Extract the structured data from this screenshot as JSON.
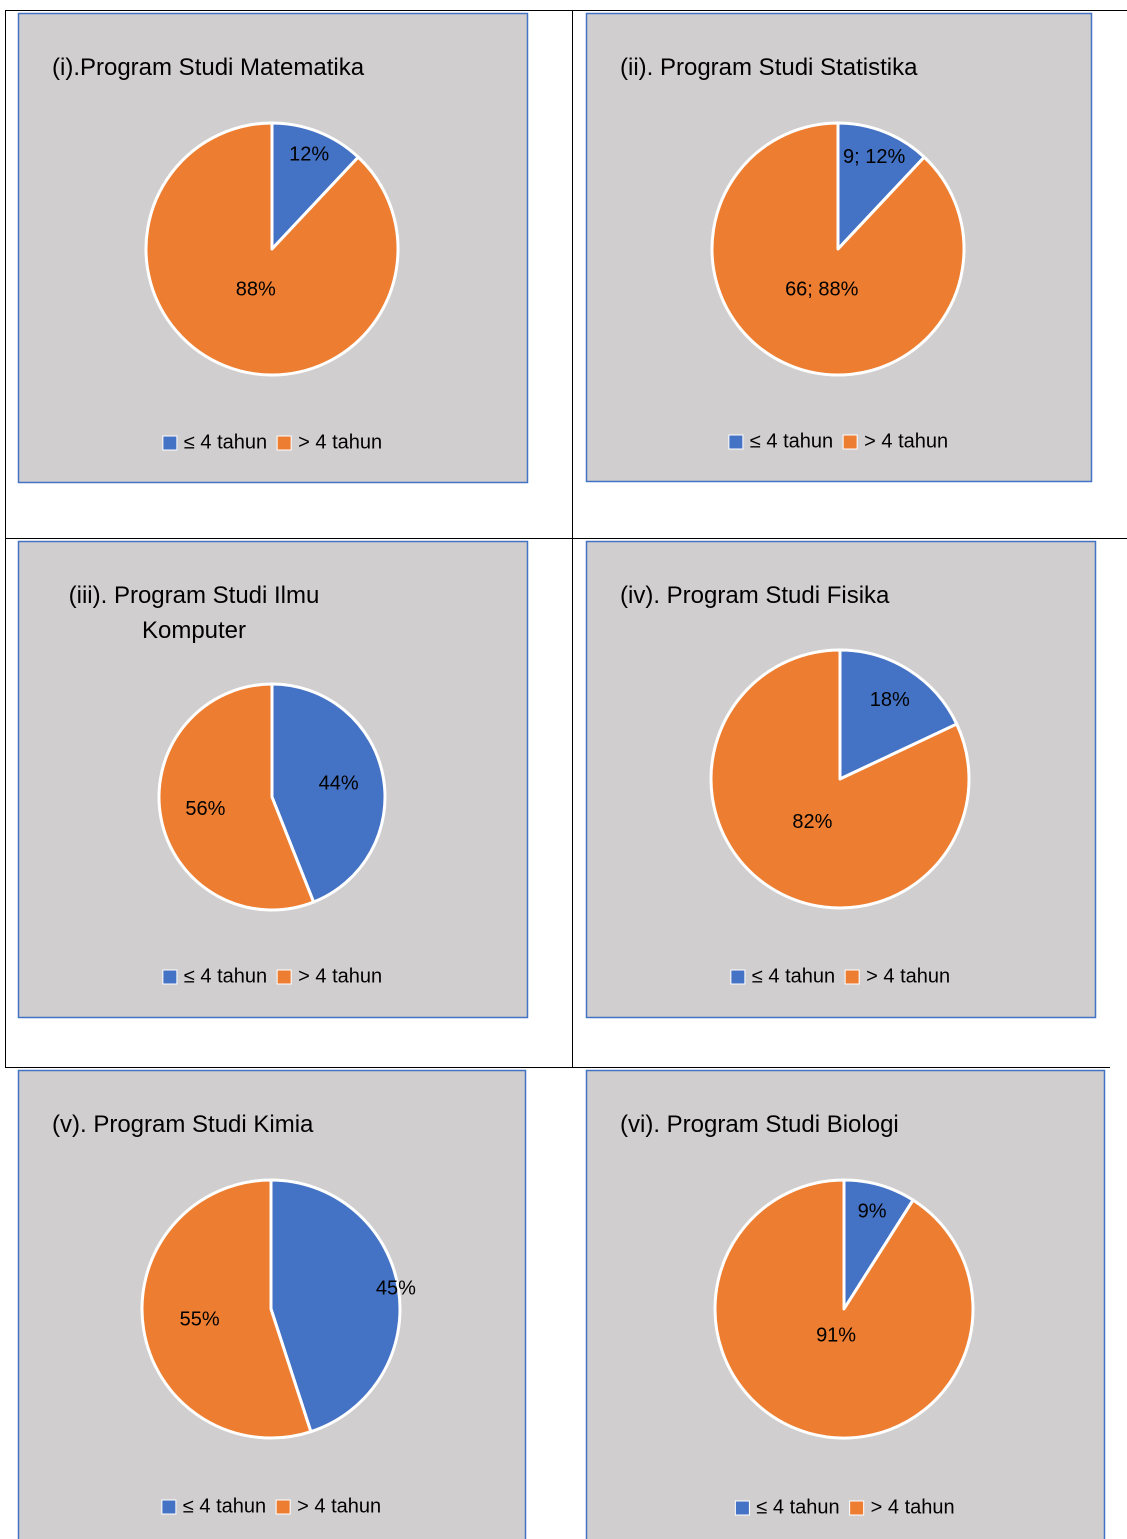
{
  "chart_data": [
    {
      "type": "pie",
      "title": "(i).Program Studi Matematika",
      "categories": [
        "≤ 4 tahun",
        "> 4 tahun"
      ],
      "values": [
        12,
        88
      ],
      "value_labels": [
        "12%",
        "88%"
      ],
      "colors": [
        "#4472c4",
        "#ed7d31"
      ],
      "legend": "bottom"
    },
    {
      "type": "pie",
      "title": "(ii). Program Studi Statistika",
      "categories": [
        "≤ 4 tahun",
        "> 4 tahun"
      ],
      "values": [
        9,
        66
      ],
      "value_labels": [
        "9; 12%",
        "66; 88%"
      ],
      "colors": [
        "#4472c4",
        "#ed7d31"
      ],
      "legend": "bottom"
    },
    {
      "type": "pie",
      "title": "(iii). Program Studi Ilmu\nKomputer",
      "categories": [
        "≤ 4 tahun",
        "> 4 tahun"
      ],
      "values": [
        44,
        56
      ],
      "value_labels": [
        "44%",
        "56%"
      ],
      "colors": [
        "#4472c4",
        "#ed7d31"
      ],
      "legend": "bottom"
    },
    {
      "type": "pie",
      "title": "(iv). Program Studi Fisika",
      "categories": [
        "≤ 4 tahun",
        "> 4 tahun"
      ],
      "values": [
        18,
        82
      ],
      "value_labels": [
        "18%",
        "82%"
      ],
      "colors": [
        "#4472c4",
        "#ed7d31"
      ],
      "legend": "bottom"
    },
    {
      "type": "pie",
      "title": "(v). Program Studi Kimia",
      "categories": [
        "≤ 4 tahun",
        "> 4 tahun"
      ],
      "values": [
        45,
        55
      ],
      "value_labels": [
        "45%",
        "55%"
      ],
      "colors": [
        "#4472c4",
        "#ed7d31"
      ],
      "legend": "bottom"
    },
    {
      "type": "pie",
      "title": "(vi). Program Studi Biologi",
      "categories": [
        "≤ 4 tahun",
        "> 4 tahun"
      ],
      "values": [
        9,
        91
      ],
      "value_labels": [
        "9%",
        "91%"
      ],
      "colors": [
        "#4472c4",
        "#ed7d31"
      ],
      "legend": "bottom"
    }
  ]
}
